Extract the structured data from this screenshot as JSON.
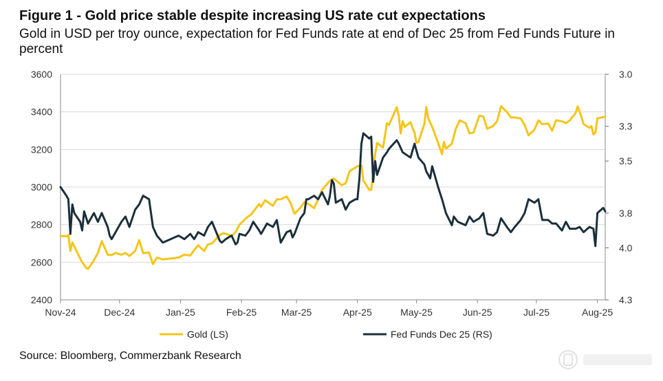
{
  "figure": {
    "title": "Figure 1 - Gold price stable despite increasing US rate cut expectations",
    "subtitle": "Gold in USD per troy ounce, expectation for Fed Funds rate at end of Dec 25 from Fed Funds Future in percent",
    "source": "Source: Bloomberg, Commerzbank Research"
  },
  "chart_data": {
    "type": "line",
    "title": "Figure 1 - Gold price stable despite increasing US rate cut expectations",
    "subtitle": "Gold in USD per troy ounce, expectation for Fed Funds rate at end of Dec 25 from Fed Funds Future in percent",
    "x_tick_labels": [
      "Nov-24",
      "Dec-24",
      "Jan-25",
      "Feb-25",
      "Mar-25",
      "Apr-25",
      "May-25",
      "Jun-25",
      "Jul-25",
      "Aug-25"
    ],
    "x_range": [
      "2024-11-01",
      "2025-08-05"
    ],
    "y_left": {
      "range": [
        2400,
        3600
      ],
      "ticks": [
        "2400",
        "2600",
        "2800",
        "3000",
        "3200",
        "3400",
        "3600"
      ]
    },
    "y_right": {
      "range": [
        3.0,
        4.3
      ],
      "inverted": true,
      "ticks": [
        "3.0",
        "3.3",
        "3.5",
        "3.8",
        "4.0",
        "4.3"
      ]
    },
    "grid": "horizontal",
    "legend_position": "bottom",
    "series": [
      {
        "name": "Gold (LS)",
        "axis": "left",
        "color": "#F5C518",
        "points": [
          [
            "2024-11-01",
            2740
          ],
          [
            "2024-11-04",
            2738
          ],
          [
            "2024-11-05",
            2745
          ],
          [
            "2024-11-06",
            2660
          ],
          [
            "2024-11-07",
            2705
          ],
          [
            "2024-11-08",
            2685
          ],
          [
            "2024-11-11",
            2620
          ],
          [
            "2024-11-12",
            2600
          ],
          [
            "2024-11-14",
            2570
          ],
          [
            "2024-11-15",
            2565
          ],
          [
            "2024-11-18",
            2610
          ],
          [
            "2024-11-20",
            2650
          ],
          [
            "2024-11-22",
            2712
          ],
          [
            "2024-11-25",
            2640
          ],
          [
            "2024-11-27",
            2638
          ],
          [
            "2024-11-29",
            2650
          ],
          [
            "2024-12-02",
            2640
          ],
          [
            "2024-12-04",
            2650
          ],
          [
            "2024-12-06",
            2633
          ],
          [
            "2024-12-09",
            2660
          ],
          [
            "2024-12-11",
            2718
          ],
          [
            "2024-12-13",
            2648
          ],
          [
            "2024-12-16",
            2652
          ],
          [
            "2024-12-18",
            2590
          ],
          [
            "2024-12-20",
            2625
          ],
          [
            "2024-12-23",
            2615
          ],
          [
            "2024-12-27",
            2620
          ],
          [
            "2024-12-31",
            2625
          ],
          [
            "2025-01-03",
            2640
          ],
          [
            "2025-01-06",
            2636
          ],
          [
            "2025-01-08",
            2665
          ],
          [
            "2025-01-10",
            2690
          ],
          [
            "2025-01-13",
            2660
          ],
          [
            "2025-01-15",
            2695
          ],
          [
            "2025-01-17",
            2700
          ],
          [
            "2025-01-21",
            2745
          ],
          [
            "2025-01-23",
            2755
          ],
          [
            "2025-01-27",
            2740
          ],
          [
            "2025-01-29",
            2760
          ],
          [
            "2025-01-31",
            2800
          ],
          [
            "2025-02-04",
            2840
          ],
          [
            "2025-02-06",
            2855
          ],
          [
            "2025-02-10",
            2910
          ],
          [
            "2025-02-11",
            2895
          ],
          [
            "2025-02-13",
            2930
          ],
          [
            "2025-02-17",
            2900
          ],
          [
            "2025-02-19",
            2935
          ],
          [
            "2025-02-21",
            2935
          ],
          [
            "2025-02-24",
            2950
          ],
          [
            "2025-02-26",
            2915
          ],
          [
            "2025-02-28",
            2858
          ],
          [
            "2025-03-03",
            2890
          ],
          [
            "2025-03-05",
            2920
          ],
          [
            "2025-03-07",
            2910
          ],
          [
            "2025-03-10",
            2888
          ],
          [
            "2025-03-12",
            2935
          ],
          [
            "2025-03-14",
            2985
          ],
          [
            "2025-03-18",
            3034
          ],
          [
            "2025-03-20",
            3045
          ],
          [
            "2025-03-24",
            3010
          ],
          [
            "2025-03-26",
            3020
          ],
          [
            "2025-03-28",
            3085
          ],
          [
            "2025-04-01",
            3110
          ],
          [
            "2025-04-03",
            3115
          ],
          [
            "2025-04-04",
            3035
          ],
          [
            "2025-04-07",
            2985
          ],
          [
            "2025-04-08",
            2985
          ],
          [
            "2025-04-09",
            3080
          ],
          [
            "2025-04-10",
            3175
          ],
          [
            "2025-04-11",
            3235
          ],
          [
            "2025-04-14",
            3210
          ],
          [
            "2025-04-16",
            3340
          ],
          [
            "2025-04-17",
            3330
          ],
          [
            "2025-04-21",
            3425
          ],
          [
            "2025-04-22",
            3380
          ],
          [
            "2025-04-23",
            3285
          ],
          [
            "2025-04-24",
            3350
          ],
          [
            "2025-04-25",
            3320
          ],
          [
            "2025-04-28",
            3345
          ],
          [
            "2025-04-29",
            3315
          ],
          [
            "2025-04-30",
            3290
          ],
          [
            "2025-05-01",
            3235
          ],
          [
            "2025-05-02",
            3240
          ],
          [
            "2025-05-05",
            3335
          ],
          [
            "2025-05-06",
            3425
          ],
          [
            "2025-05-07",
            3365
          ],
          [
            "2025-05-09",
            3320
          ],
          [
            "2025-05-12",
            3235
          ],
          [
            "2025-05-14",
            3175
          ],
          [
            "2025-05-15",
            3240
          ],
          [
            "2025-05-16",
            3205
          ],
          [
            "2025-05-19",
            3230
          ],
          [
            "2025-05-21",
            3310
          ],
          [
            "2025-05-23",
            3355
          ],
          [
            "2025-05-26",
            3340
          ],
          [
            "2025-05-28",
            3285
          ],
          [
            "2025-05-30",
            3290
          ],
          [
            "2025-06-02",
            3380
          ],
          [
            "2025-06-04",
            3375
          ],
          [
            "2025-06-06",
            3310
          ],
          [
            "2025-06-09",
            3325
          ],
          [
            "2025-06-11",
            3350
          ],
          [
            "2025-06-13",
            3430
          ],
          [
            "2025-06-16",
            3400
          ],
          [
            "2025-06-18",
            3370
          ],
          [
            "2025-06-20",
            3370
          ],
          [
            "2025-06-23",
            3365
          ],
          [
            "2025-06-25",
            3330
          ],
          [
            "2025-06-27",
            3275
          ],
          [
            "2025-06-30",
            3305
          ],
          [
            "2025-07-02",
            3355
          ],
          [
            "2025-07-04",
            3335
          ],
          [
            "2025-07-07",
            3338
          ],
          [
            "2025-07-09",
            3300
          ],
          [
            "2025-07-11",
            3355
          ],
          [
            "2025-07-14",
            3350
          ],
          [
            "2025-07-16",
            3340
          ],
          [
            "2025-07-18",
            3355
          ],
          [
            "2025-07-21",
            3395
          ],
          [
            "2025-07-22",
            3430
          ],
          [
            "2025-07-24",
            3370
          ],
          [
            "2025-07-25",
            3335
          ],
          [
            "2025-07-28",
            3315
          ],
          [
            "2025-07-29",
            3325
          ],
          [
            "2025-07-30",
            3280
          ],
          [
            "2025-07-31",
            3290
          ],
          [
            "2025-08-01",
            3365
          ],
          [
            "2025-08-04",
            3372
          ],
          [
            "2025-08-05",
            3375
          ]
        ]
      },
      {
        "name": "Fed Funds Dec 25 (RS)",
        "axis": "right",
        "color": "#1B2F3A",
        "points": [
          [
            "2024-11-01",
            3.65
          ],
          [
            "2024-11-04",
            3.7
          ],
          [
            "2024-11-05",
            3.72
          ],
          [
            "2024-11-06",
            3.92
          ],
          [
            "2024-11-07",
            3.75
          ],
          [
            "2024-11-08",
            3.8
          ],
          [
            "2024-11-11",
            3.85
          ],
          [
            "2024-11-12",
            3.9
          ],
          [
            "2024-11-13",
            3.79
          ],
          [
            "2024-11-15",
            3.86
          ],
          [
            "2024-11-18",
            3.8
          ],
          [
            "2024-11-20",
            3.85
          ],
          [
            "2024-11-22",
            3.8
          ],
          [
            "2024-11-25",
            3.88
          ],
          [
            "2024-11-26",
            3.93
          ],
          [
            "2024-11-27",
            3.95
          ],
          [
            "2024-12-02",
            3.85
          ],
          [
            "2024-12-04",
            3.82
          ],
          [
            "2024-12-06",
            3.88
          ],
          [
            "2024-12-09",
            3.78
          ],
          [
            "2024-12-11",
            3.75
          ],
          [
            "2024-12-13",
            3.7
          ],
          [
            "2024-12-16",
            3.72
          ],
          [
            "2024-12-18",
            3.88
          ],
          [
            "2024-12-20",
            3.93
          ],
          [
            "2024-12-23",
            3.97
          ],
          [
            "2024-12-27",
            3.95
          ],
          [
            "2024-12-31",
            3.93
          ],
          [
            "2025-01-03",
            3.95
          ],
          [
            "2025-01-06",
            3.92
          ],
          [
            "2025-01-08",
            3.95
          ],
          [
            "2025-01-10",
            3.91
          ],
          [
            "2025-01-13",
            3.93
          ],
          [
            "2025-01-15",
            3.88
          ],
          [
            "2025-01-17",
            3.85
          ],
          [
            "2025-01-21",
            3.96
          ],
          [
            "2025-01-22",
            3.97
          ],
          [
            "2025-01-24",
            3.95
          ],
          [
            "2025-01-27",
            3.93
          ],
          [
            "2025-01-29",
            3.98
          ],
          [
            "2025-01-30",
            3.97
          ],
          [
            "2025-01-31",
            3.92
          ],
          [
            "2025-02-03",
            3.93
          ],
          [
            "2025-02-05",
            3.9
          ],
          [
            "2025-02-07",
            3.85
          ],
          [
            "2025-02-10",
            3.9
          ],
          [
            "2025-02-11",
            3.92
          ],
          [
            "2025-02-13",
            3.88
          ],
          [
            "2025-02-14",
            3.86
          ],
          [
            "2025-02-17",
            3.88
          ],
          [
            "2025-02-19",
            3.84
          ],
          [
            "2025-02-21",
            3.97
          ],
          [
            "2025-02-24",
            3.91
          ],
          [
            "2025-02-26",
            3.9
          ],
          [
            "2025-02-27",
            3.94
          ],
          [
            "2025-02-28",
            3.92
          ],
          [
            "2025-03-03",
            3.83
          ],
          [
            "2025-03-05",
            3.8
          ],
          [
            "2025-03-06",
            3.72
          ],
          [
            "2025-03-07",
            3.72
          ],
          [
            "2025-03-10",
            3.7
          ],
          [
            "2025-03-12",
            3.72
          ],
          [
            "2025-03-14",
            3.68
          ],
          [
            "2025-03-17",
            3.75
          ],
          [
            "2025-03-18",
            3.7
          ],
          [
            "2025-03-19",
            3.61
          ],
          [
            "2025-03-20",
            3.63
          ],
          [
            "2025-03-21",
            3.74
          ],
          [
            "2025-03-24",
            3.72
          ],
          [
            "2025-03-26",
            3.78
          ],
          [
            "2025-03-28",
            3.74
          ],
          [
            "2025-03-31",
            3.72
          ],
          [
            "2025-04-01",
            3.72
          ],
          [
            "2025-04-02",
            3.6
          ],
          [
            "2025-04-03",
            3.4
          ],
          [
            "2025-04-04",
            3.34
          ],
          [
            "2025-04-07",
            3.37
          ],
          [
            "2025-04-08",
            3.36
          ],
          [
            "2025-04-09",
            3.62
          ],
          [
            "2025-04-10",
            3.5
          ],
          [
            "2025-04-11",
            3.58
          ],
          [
            "2025-04-14",
            3.48
          ],
          [
            "2025-04-16",
            3.45
          ],
          [
            "2025-04-17",
            3.43
          ],
          [
            "2025-04-21",
            3.38
          ],
          [
            "2025-04-22",
            3.4
          ],
          [
            "2025-04-24",
            3.45
          ],
          [
            "2025-04-28",
            3.48
          ],
          [
            "2025-04-30",
            3.4
          ],
          [
            "2025-05-02",
            3.48
          ],
          [
            "2025-05-05",
            3.52
          ],
          [
            "2025-05-06",
            3.56
          ],
          [
            "2025-05-07",
            3.58
          ],
          [
            "2025-05-08",
            3.6
          ],
          [
            "2025-05-09",
            3.53
          ],
          [
            "2025-05-12",
            3.65
          ],
          [
            "2025-05-14",
            3.72
          ],
          [
            "2025-05-16",
            3.8
          ],
          [
            "2025-05-19",
            3.87
          ],
          [
            "2025-05-20",
            3.82
          ],
          [
            "2025-05-22",
            3.85
          ],
          [
            "2025-05-26",
            3.87
          ],
          [
            "2025-05-28",
            3.82
          ],
          [
            "2025-05-30",
            3.85
          ],
          [
            "2025-06-02",
            3.83
          ],
          [
            "2025-06-04",
            3.8
          ],
          [
            "2025-06-06",
            3.92
          ],
          [
            "2025-06-09",
            3.93
          ],
          [
            "2025-06-11",
            3.91
          ],
          [
            "2025-06-13",
            3.83
          ],
          [
            "2025-06-16",
            3.88
          ],
          [
            "2025-06-18",
            3.91
          ],
          [
            "2025-06-20",
            3.88
          ],
          [
            "2025-06-23",
            3.84
          ],
          [
            "2025-06-25",
            3.8
          ],
          [
            "2025-06-27",
            3.72
          ],
          [
            "2025-06-30",
            3.74
          ],
          [
            "2025-07-02",
            3.72
          ],
          [
            "2025-07-04",
            3.84
          ],
          [
            "2025-07-07",
            3.84
          ],
          [
            "2025-07-09",
            3.86
          ],
          [
            "2025-07-11",
            3.86
          ],
          [
            "2025-07-14",
            3.9
          ],
          [
            "2025-07-16",
            3.85
          ],
          [
            "2025-07-18",
            3.89
          ],
          [
            "2025-07-21",
            3.89
          ],
          [
            "2025-07-23",
            3.88
          ],
          [
            "2025-07-25",
            3.91
          ],
          [
            "2025-07-28",
            3.88
          ],
          [
            "2025-07-30",
            3.89
          ],
          [
            "2025-07-31",
            3.99
          ],
          [
            "2025-08-01",
            3.8
          ],
          [
            "2025-08-04",
            3.77
          ],
          [
            "2025-08-05",
            3.79
          ]
        ]
      }
    ]
  }
}
